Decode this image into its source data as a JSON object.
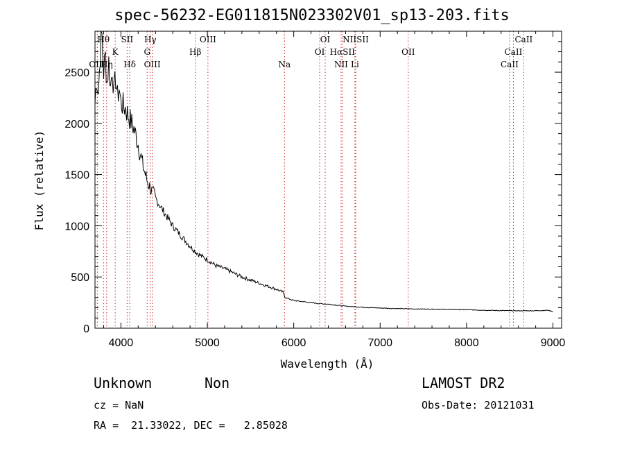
{
  "page": {
    "title": "spec-56232-EG011815N023302V01_sp13-203.fits",
    "class_label": "Unknown",
    "subclass_label": "Non",
    "survey": "LAMOST DR2",
    "cz_text": "cz = NaN",
    "obs_date_text": "Obs-Date: 20121031",
    "coords_text": "RA =  21.33022, DEC =   2.85028"
  },
  "chart_data": {
    "type": "line",
    "title": "spec-56232-EG011815N023302V01_sp13-203.fits",
    "xlabel": "Wavelength (Å)",
    "ylabel": "Flux (relative)",
    "xlim": [
      3700,
      9100
    ],
    "ylim": [
      0,
      2900
    ],
    "x_ticks": [
      4000,
      5000,
      6000,
      7000,
      8000,
      9000
    ],
    "y_ticks": [
      0,
      500,
      1000,
      1500,
      2000,
      2500
    ],
    "grid": false,
    "line_color": "#000000",
    "marker_color": "#d22020",
    "series": [
      {
        "x": [
          3700,
          3720,
          3740,
          3760,
          3780,
          3800,
          3820,
          3840,
          3860,
          3880,
          3900,
          3920,
          3940,
          3960,
          3980,
          4000,
          4050,
          4100,
          4150,
          4200,
          4250,
          4300,
          4350,
          4400,
          4450,
          4500,
          4600,
          4700,
          4800,
          4850,
          4900,
          5000,
          5100,
          5200,
          5300,
          5400,
          5500,
          5600,
          5700,
          5800,
          5880,
          5900,
          5950,
          6000,
          6100,
          6200,
          6300,
          6400,
          6500,
          6600,
          6700,
          6800,
          6900,
          7000,
          7200,
          7400,
          7600,
          7800,
          8000,
          8200,
          8400,
          8600,
          8800,
          8950,
          9000
        ],
        "y": [
          2200,
          2450,
          2300,
          2700,
          2850,
          2500,
          2650,
          2400,
          2600,
          2350,
          2550,
          2300,
          2450,
          2250,
          2350,
          2200,
          2150,
          2050,
          1950,
          1800,
          1600,
          1450,
          1350,
          1270,
          1200,
          1130,
          1000,
          900,
          800,
          760,
          720,
          670,
          610,
          580,
          540,
          500,
          470,
          440,
          410,
          380,
          350,
          300,
          285,
          270,
          260,
          250,
          240,
          235,
          225,
          215,
          210,
          205,
          200,
          197,
          192,
          188,
          186,
          183,
          180,
          176,
          172,
          170,
          171,
          175,
          160
        ]
      }
    ],
    "lines": [
      {
        "label": "Hθ",
        "x": 3798,
        "row": 0
      },
      {
        "label": "OIII",
        "x": 3727,
        "row": 2
      },
      {
        "label": "Hη",
        "x": 3835,
        "row": 2
      },
      {
        "label": "K",
        "x": 3934,
        "row": 1
      },
      {
        "label": "SII",
        "x": 4072,
        "row": 0
      },
      {
        "label": "Hδ",
        "x": 4102,
        "row": 2
      },
      {
        "label": "Hγ",
        "x": 4340,
        "row": 0
      },
      {
        "label": "G",
        "x": 4304,
        "row": 1
      },
      {
        "label": "OIII",
        "x": 4363,
        "row": 2
      },
      {
        "label": "OIII",
        "x": 5007,
        "row": 0
      },
      {
        "label": "Hβ",
        "x": 4861,
        "row": 1
      },
      {
        "label": "Na",
        "x": 5893,
        "row": 2
      },
      {
        "label": "OI",
        "x": 6364,
        "row": 0
      },
      {
        "label": "OI",
        "x": 6300,
        "row": 1
      },
      {
        "label": "NIISII",
        "x": 6717,
        "row": 0
      },
      {
        "label": "HαSII",
        "x": 6563,
        "row": 1
      },
      {
        "label": "NII",
        "x": 6548,
        "row": 2
      },
      {
        "label": "Li",
        "x": 6708,
        "row": 2
      },
      {
        "label": "OII",
        "x": 7325,
        "row": 1
      },
      {
        "label": "CaII",
        "x": 8662,
        "row": 0
      },
      {
        "label": "CaII",
        "x": 8542,
        "row": 1
      },
      {
        "label": "CaII",
        "x": 8498,
        "row": 2
      }
    ]
  }
}
